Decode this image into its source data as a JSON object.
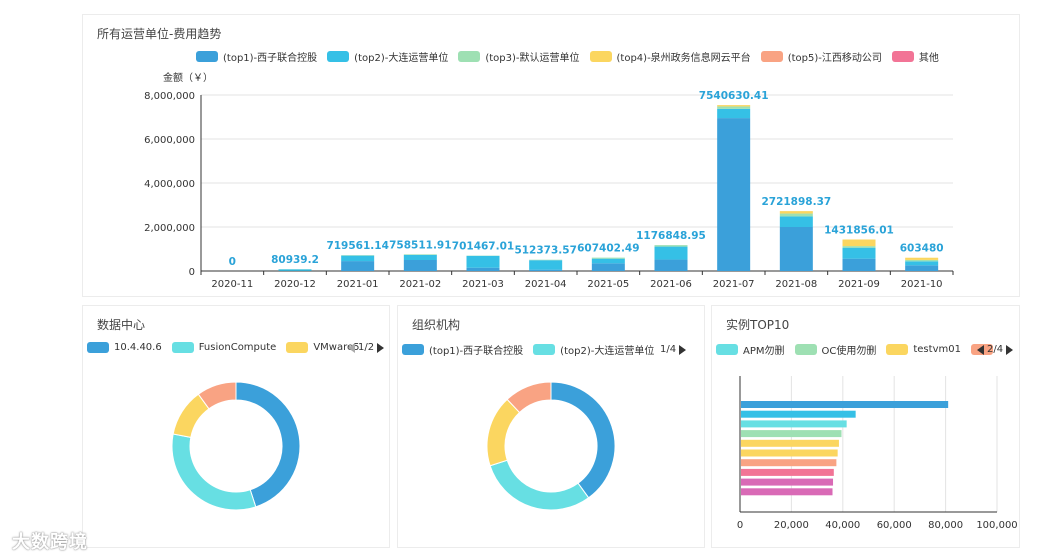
{
  "top_panel": {
    "title": "所有运营单位-费用趋势"
  },
  "datacenter_panel": {
    "title": "数据中心",
    "pager": "1/2"
  },
  "org_panel": {
    "title": "组织机构",
    "pager": "1/4"
  },
  "instance_panel": {
    "title": "实例TOP10",
    "pager": "2/4"
  },
  "watermark": {
    "text": "大数跨境"
  },
  "chart_data": [
    {
      "id": "cost-trend",
      "type": "bar",
      "stacked": true,
      "ylabel": "金额（￥）",
      "ylim": [
        0,
        8000000
      ],
      "yticks": [
        0,
        2000000,
        4000000,
        6000000,
        8000000
      ],
      "ytick_labels": [
        "0",
        "2,000,000",
        "4,000,000",
        "6,000,000",
        "8,000,000"
      ],
      "grid": true,
      "legend_position": "top",
      "categories": [
        "2020-11",
        "2020-12",
        "2021-01",
        "2021-02",
        "2021-03",
        "2021-04",
        "2021-05",
        "2021-06",
        "2021-07",
        "2021-08",
        "2021-09",
        "2021-10"
      ],
      "totals": [
        "0",
        "80939.2",
        "719561.14",
        "758511.91",
        "701467.01",
        "512373.57",
        "607402.49",
        "1176848.95",
        "7540630.41",
        "2721898.37",
        "1431856.01",
        "603480"
      ],
      "series": [
        {
          "name": "(top1)-西子联合控股",
          "color": "#3ba0da",
          "values": [
            0,
            10000,
            450000,
            500000,
            150000,
            60000,
            350000,
            520000,
            6950000,
            2000000,
            560000,
            260000
          ]
        },
        {
          "name": "(top2)-大连运营单位",
          "color": "#35c0e6",
          "values": [
            0,
            65000,
            250000,
            230000,
            540000,
            430000,
            210000,
            590000,
            420000,
            480000,
            500000,
            180000
          ]
        },
        {
          "name": "(top3)-默认运营单位",
          "color": "#9ee0b3",
          "values": [
            0,
            5939,
            19561,
            28512,
            11467,
            22374,
            47402,
            66849,
            110000,
            131898,
            71856,
            63480
          ]
        },
        {
          "name": "(top4)-泉州政务信息网云平台",
          "color": "#fbd660",
          "values": [
            0,
            0,
            0,
            0,
            0,
            0,
            0,
            0,
            60630,
            110000,
            300000,
            100000
          ]
        },
        {
          "name": "(top5)-江西移动公司",
          "color": "#f9a383",
          "values": [
            0,
            0,
            0,
            0,
            0,
            0,
            0,
            0,
            0,
            0,
            0,
            0
          ]
        },
        {
          "name": "其他",
          "color": "#f27496",
          "values": [
            0,
            0,
            0,
            0,
            0,
            0,
            0,
            0,
            0,
            0,
            0,
            0
          ]
        }
      ]
    },
    {
      "id": "datacenter-donut",
      "type": "pie",
      "legend_position": "top",
      "legend": [
        {
          "name": "10.4.40.6",
          "color": "#3ba0da"
        },
        {
          "name": "FusionCompute",
          "color": "#67dfe3"
        },
        {
          "name": "VMware5",
          "color": "#fbd660"
        }
      ],
      "slices": [
        {
          "value": 45,
          "color": "#3ba0da"
        },
        {
          "value": 33,
          "color": "#67dfe3"
        },
        {
          "value": 12,
          "color": "#fbd660"
        },
        {
          "value": 10,
          "color": "#f9a383"
        }
      ]
    },
    {
      "id": "org-donut",
      "type": "pie",
      "legend_position": "top",
      "legend": [
        {
          "name": "(top1)-西子联合控股",
          "color": "#3ba0da"
        },
        {
          "name": "(top2)-大连运营单位",
          "color": "#67dfe3"
        }
      ],
      "slices": [
        {
          "value": 40,
          "color": "#3ba0da"
        },
        {
          "value": 30,
          "color": "#67dfe3"
        },
        {
          "value": 18,
          "color": "#fbd660"
        },
        {
          "value": 12,
          "color": "#f9a383"
        }
      ]
    },
    {
      "id": "instance-top10",
      "type": "bar",
      "orientation": "horizontal",
      "legend_position": "top",
      "xlim": [
        0,
        100000
      ],
      "xticks": [
        0,
        20000,
        40000,
        60000,
        80000,
        100000
      ],
      "xtick_labels": [
        "0",
        "20,000",
        "40,000",
        "60,000",
        "80,000",
        "100,000"
      ],
      "grid": true,
      "legend": [
        {
          "name": "APM勿删",
          "color": "#67dfe3"
        },
        {
          "name": "OC使用勿删",
          "color": "#9ee0b3"
        },
        {
          "name": "testvm01",
          "color": "#fbd660"
        },
        {
          "name": "",
          "color": "#f9a383"
        }
      ],
      "values": [
        81000,
        45000,
        41500,
        39500,
        38500,
        38000,
        37500,
        36500,
        36200,
        36000
      ],
      "colors": [
        "#3ba0da",
        "#35c0e6",
        "#67dfe3",
        "#9ee0b3",
        "#fbd660",
        "#fbd660",
        "#f9a383",
        "#f27496",
        "#d96ab6",
        "#d96ab6"
      ]
    }
  ]
}
